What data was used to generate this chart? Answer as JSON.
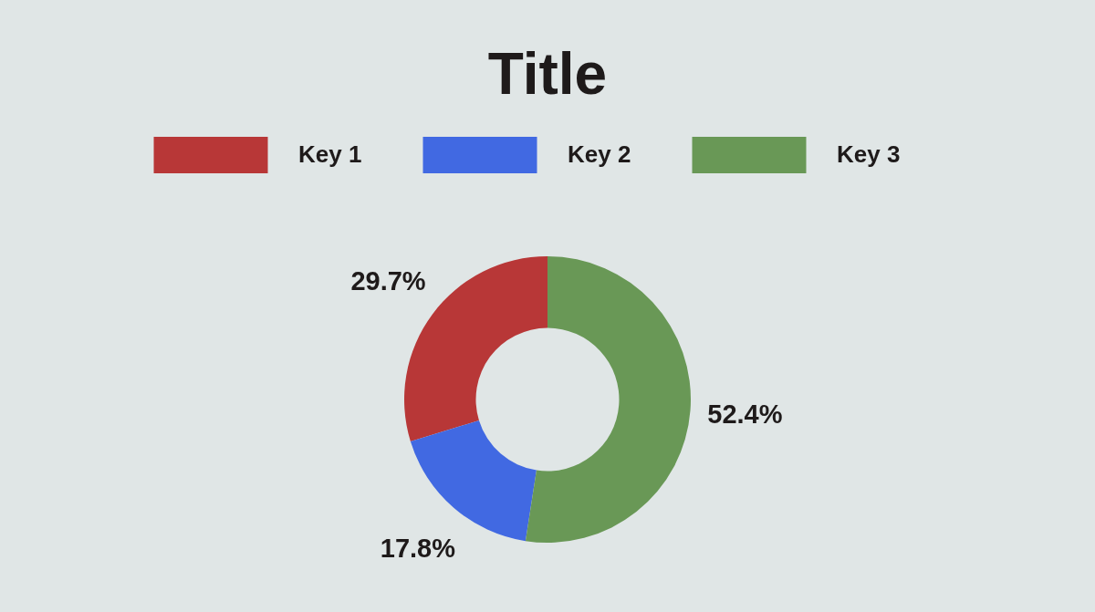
{
  "chart_data": {
    "type": "donut",
    "title": "Title",
    "categories": [
      "Key 1",
      "Key 2",
      "Key 3"
    ],
    "values": [
      29.7,
      17.8,
      52.4
    ],
    "colors": [
      "#b83737",
      "#4169e2",
      "#699856"
    ],
    "value_labels": [
      "29.7%",
      "17.8%",
      "52.4%"
    ],
    "legend": "top"
  }
}
